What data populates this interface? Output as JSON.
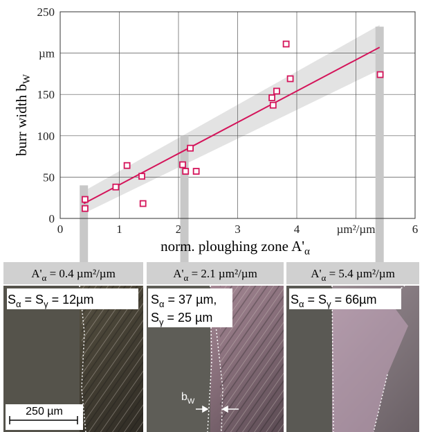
{
  "chart_data": {
    "type": "scatter",
    "ylabel": [
      "burr width b",
      "W"
    ],
    "xlabel": [
      "norm. ploughing zone A'",
      "α"
    ],
    "x": [
      0.42,
      0.42,
      0.94,
      1.13,
      1.38,
      1.4,
      2.07,
      2.12,
      2.2,
      2.3,
      3.58,
      3.6,
      3.66,
      3.82,
      3.89,
      5.41
    ],
    "values": [
      23,
      12,
      38,
      64,
      51,
      18,
      65,
      57,
      85,
      57,
      146,
      137,
      154,
      211,
      169,
      174
    ],
    "color": "#d4145a",
    "xlim": [
      0,
      6
    ],
    "ylim": [
      0,
      250
    ],
    "xticks": [
      0,
      1,
      2,
      3,
      4,
      {
        "value": 5,
        "label": "µm²/µm"
      },
      6
    ],
    "yticks": [
      0,
      50,
      100,
      150,
      {
        "value": 200,
        "label": "µm"
      },
      250
    ],
    "grid": true,
    "fit": {
      "x": [
        0.4,
        5.4
      ],
      "y": [
        18,
        207
      ],
      "lower": [
        6,
        180
      ],
      "upper": [
        33,
        234
      ]
    },
    "highlights": [
      {
        "x": 0.4,
        "top": 40
      },
      {
        "x": 2.1,
        "top": 100
      },
      {
        "x": 5.4,
        "top": 232
      }
    ]
  },
  "panels": [
    {
      "label": [
        "A'",
        "α",
        " = 0.4 µm²/µm"
      ],
      "caption": [
        [
          "S",
          "α",
          " = S",
          "γ",
          " = 12µm"
        ]
      ],
      "scale": "250 µm"
    },
    {
      "label": [
        "A'",
        "α",
        " = 2.1 µm²/µm"
      ],
      "caption": [
        [
          "S",
          "α",
          " = 37 µm,"
        ],
        [
          "S",
          "γ",
          " = 25 µm"
        ]
      ],
      "marker": [
        "b",
        "W"
      ]
    },
    {
      "label": [
        "A'",
        "α",
        " = 5.4 µm²/µm"
      ],
      "caption": [
        [
          "S",
          "α",
          " = S",
          "γ",
          " = 66µm"
        ]
      ]
    }
  ]
}
